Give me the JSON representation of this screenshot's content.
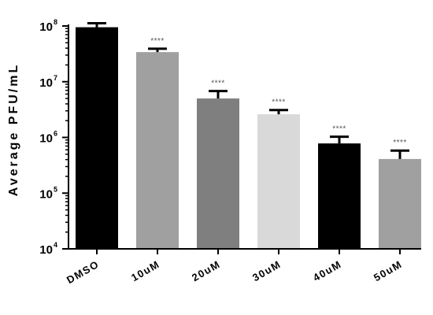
{
  "chart_data": {
    "type": "bar",
    "title": "",
    "xlabel": "",
    "ylabel": "Average PFU/mL",
    "yscale": "log",
    "ylim": [
      10000,
      100000000
    ],
    "yticks": [
      {
        "value": 10000,
        "base": "10",
        "exp": "4"
      },
      {
        "value": 100000,
        "base": "10",
        "exp": "5"
      },
      {
        "value": 1000000,
        "base": "10",
        "exp": "6"
      },
      {
        "value": 10000000,
        "base": "10",
        "exp": "7"
      },
      {
        "value": 100000000,
        "base": "10",
        "exp": "8"
      }
    ],
    "grid": false,
    "categories": [
      "DMSO",
      "10uM",
      "20uM",
      "30uM",
      "40uM",
      "50uM"
    ],
    "values": [
      95000000,
      34000000,
      5000000,
      2600000,
      780000,
      410000
    ],
    "error_upper": [
      112000000,
      39000000,
      6800000,
      3100000,
      1030000,
      580000
    ],
    "colors": [
      "#000000",
      "#a0a0a0",
      "#7f7f7f",
      "#d9d9d9",
      "#000000",
      "#a0a0a0"
    ],
    "significance": [
      "",
      "****",
      "****",
      "****",
      "****",
      "****"
    ]
  }
}
